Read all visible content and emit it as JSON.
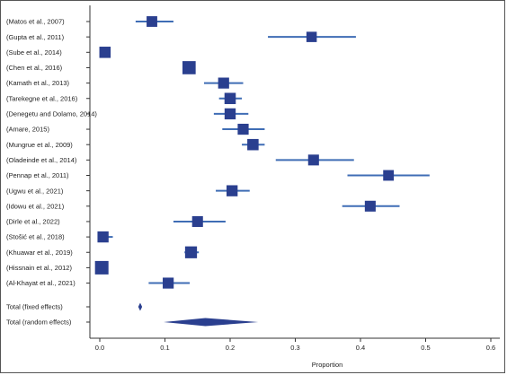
{
  "chart_data": {
    "type": "forest",
    "xlabel": "Proportion",
    "xlim": [
      -0.02,
      0.62
    ],
    "xticks": [
      0.0,
      0.1,
      0.2,
      0.3,
      0.4,
      0.5,
      0.6
    ],
    "xtick_labels": [
      "0.0",
      "0.1",
      "0.2",
      "0.3",
      "0.4",
      "0.5",
      "0.6"
    ],
    "grid": false,
    "colors": {
      "marker": "#2a3f8f",
      "ci_line": "#3f6db5",
      "text": "#222222",
      "axis": "#333333"
    },
    "studies": [
      {
        "label": "(Matos et al., 2007)",
        "estimate": 0.08,
        "ci_low": 0.055,
        "ci_high": 0.113,
        "weight": 0.55
      },
      {
        "label": "(Gupta et al., 2011)",
        "estimate": 0.325,
        "ci_low": 0.258,
        "ci_high": 0.393,
        "weight": 0.5
      },
      {
        "label": "(Sube et al., 2014)",
        "estimate": 0.008,
        "ci_low": 0.003,
        "ci_high": 0.016,
        "weight": 0.65
      },
      {
        "label": "(Chen et al., 2016)",
        "estimate": 0.137,
        "ci_low": 0.13,
        "ci_high": 0.145,
        "weight": 0.95
      },
      {
        "label": "(Kamath et al., 2013)",
        "estimate": 0.19,
        "ci_low": 0.16,
        "ci_high": 0.22,
        "weight": 0.6
      },
      {
        "label": "(Tarekegne et al., 2016)",
        "estimate": 0.2,
        "ci_low": 0.183,
        "ci_high": 0.218,
        "weight": 0.65
      },
      {
        "label": "(Denegetu and Dolamo, 2014)",
        "estimate": 0.2,
        "ci_low": 0.175,
        "ci_high": 0.228,
        "weight": 0.62
      },
      {
        "label": "(Amare, 2015)",
        "estimate": 0.22,
        "ci_low": 0.188,
        "ci_high": 0.253,
        "weight": 0.6
      },
      {
        "label": "(Mungrue et al., 2009)",
        "estimate": 0.235,
        "ci_low": 0.218,
        "ci_high": 0.253,
        "weight": 0.65
      },
      {
        "label": "(Oladeinde et al., 2014)",
        "estimate": 0.328,
        "ci_low": 0.27,
        "ci_high": 0.39,
        "weight": 0.58
      },
      {
        "label": "(Pennap et al., 2011)",
        "estimate": 0.443,
        "ci_low": 0.38,
        "ci_high": 0.506,
        "weight": 0.55
      },
      {
        "label": "(Ugwu et al., 2021)",
        "estimate": 0.203,
        "ci_low": 0.178,
        "ci_high": 0.23,
        "weight": 0.62
      },
      {
        "label": "(Idowu et al., 2021)",
        "estimate": 0.415,
        "ci_low": 0.372,
        "ci_high": 0.46,
        "weight": 0.58
      },
      {
        "label": "(Dirle et al., 2022)",
        "estimate": 0.15,
        "ci_low": 0.113,
        "ci_high": 0.193,
        "weight": 0.58
      },
      {
        "label": "(Stošić et al., 2018)",
        "estimate": 0.005,
        "ci_low": 0.0,
        "ci_high": 0.02,
        "weight": 0.62
      },
      {
        "label": "(Khuawar et al., 2019)",
        "estimate": 0.14,
        "ci_low": 0.13,
        "ci_high": 0.152,
        "weight": 0.75
      },
      {
        "label": "(Hissnain et al., 2012)",
        "estimate": 0.003,
        "ci_low": 0.0,
        "ci_high": 0.008,
        "weight": 1.0
      },
      {
        "label": "(Al-Khayat et al., 2021)",
        "estimate": 0.105,
        "ci_low": 0.075,
        "ci_high": 0.138,
        "weight": 0.6
      }
    ],
    "pooled": [
      {
        "label": "Total (fixed effects)",
        "estimate": 0.062,
        "ci_low": 0.059,
        "ci_high": 0.065
      },
      {
        "label": "Total (random effects)",
        "estimate": 0.162,
        "ci_low": 0.098,
        "ci_high": 0.243
      }
    ]
  }
}
